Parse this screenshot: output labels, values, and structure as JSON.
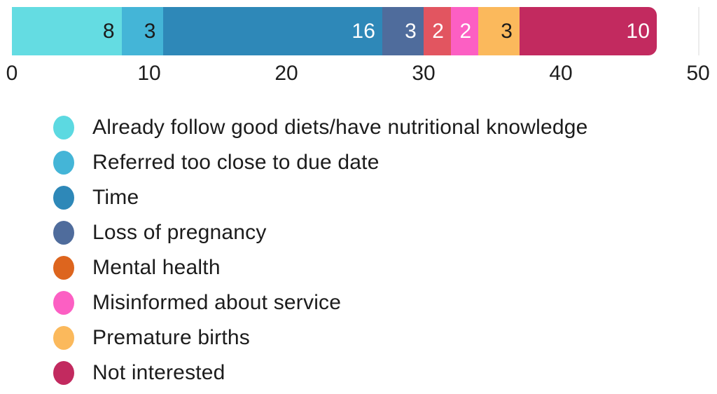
{
  "page": {
    "background": "#ffffff",
    "text_color": "#1c1c1c",
    "axis_text_color": "#1e1e1e"
  },
  "chart_data": {
    "type": "bar",
    "variant": "horizontal-stacked",
    "title": "",
    "x_axis": {
      "min": 0,
      "max": 50,
      "tick_labels": [
        "0",
        "10",
        "20",
        "30",
        "40",
        "50"
      ],
      "tick_values": [
        0,
        10,
        20,
        30,
        40,
        50
      ]
    },
    "grid": {
      "visible_line_at": 50,
      "color": "#ececec"
    },
    "total": 47,
    "legend_position": "bottom-left",
    "series": [
      {
        "label": "Already follow good diets/have nutritional knowledge",
        "value": 8,
        "bar_color": "#64DCE2",
        "legend_color": "#5CD9E1",
        "value_label_color": "#1b1b1b"
      },
      {
        "label": "Referred too close to due date",
        "value": 3,
        "bar_color": "#44B5D7",
        "legend_color": "#44B5D7",
        "value_label_color": "#1b1b1b"
      },
      {
        "label": "Time",
        "value": 16,
        "bar_color": "#2E88B8",
        "legend_color": "#2E88B8",
        "value_label_color": "#ffffff"
      },
      {
        "label": "Loss of pregnancy",
        "value": 3,
        "bar_color": "#4F6C9C",
        "legend_color": "#4F6C9C",
        "value_label_color": "#ffffff"
      },
      {
        "label": "Mental health",
        "value": 2,
        "bar_color": "#E25560",
        "legend_color": "#DD651E",
        "value_label_color": "#ffffff"
      },
      {
        "label": "Misinformed about service",
        "value": 2,
        "bar_color": "#FC5FC3",
        "legend_color": "#FC5FC3",
        "value_label_color": "#ffffff"
      },
      {
        "label": "Premature births",
        "value": 3,
        "bar_color": "#FBB95C",
        "legend_color": "#FBB95C",
        "value_label_color": "#1b1b1b"
      },
      {
        "label": "Not interested",
        "value": 10,
        "bar_color": "#C22A5F",
        "legend_color": "#C22A5F",
        "value_label_color": "#ffffff"
      }
    ]
  }
}
